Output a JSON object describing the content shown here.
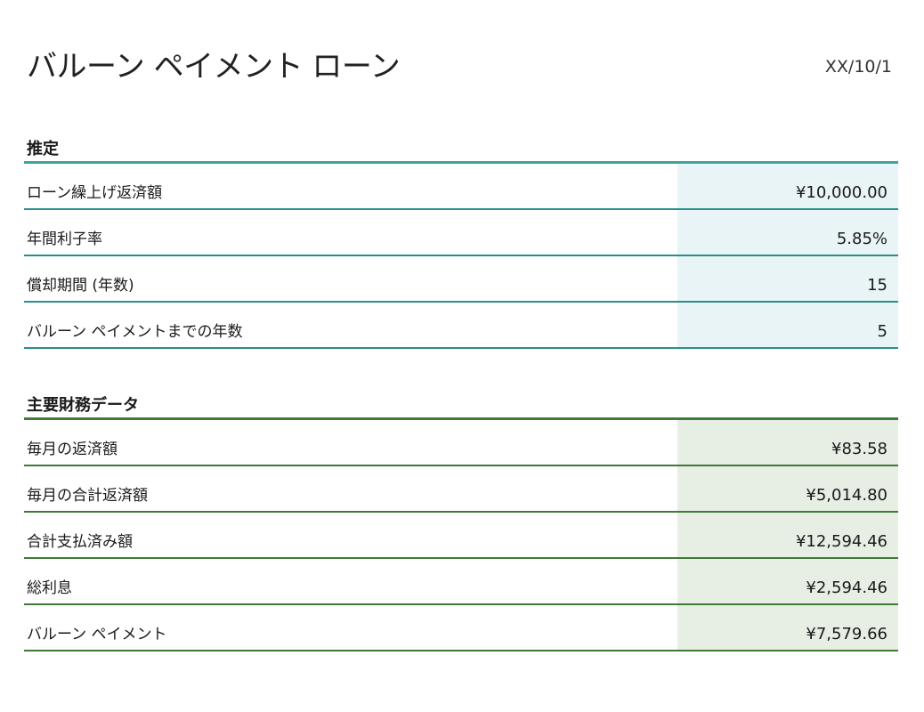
{
  "header": {
    "title": "バルーン ペイメント ローン",
    "date": "XX/10/1"
  },
  "estimate": {
    "heading": "推定",
    "rows": [
      {
        "label": "ローン繰上げ返済額",
        "value": "¥10,000.00"
      },
      {
        "label": "年間利子率",
        "value": "5.85%"
      },
      {
        "label": "償却期間 (年数)",
        "value": "15"
      },
      {
        "label": "バルーン ペイメントまでの年数",
        "value": "5"
      }
    ]
  },
  "key_data": {
    "heading": "主要財務データ",
    "rows": [
      {
        "label": "毎月の返済額",
        "value": "¥83.58"
      },
      {
        "label": "毎月の合計返済額",
        "value": "¥5,014.80"
      },
      {
        "label": "合計支払済み額",
        "value": "¥12,594.46"
      },
      {
        "label": "総利息",
        "value": "¥2,594.46"
      },
      {
        "label": "バルーン ペイメント",
        "value": "¥7,579.66"
      }
    ]
  },
  "colors": {
    "estimate_accent": "#2a8f8b",
    "estimate_fill": "#e8f4f5",
    "key_data_accent": "#3f7a36",
    "key_data_fill": "#e7eee4"
  }
}
